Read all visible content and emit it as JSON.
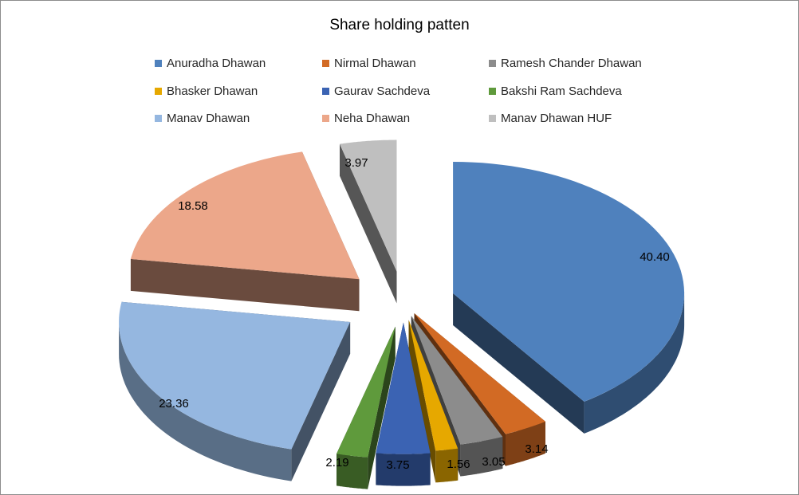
{
  "chart_data": {
    "type": "pie",
    "title": "Share holding patten",
    "legend_position": "top",
    "slices": [
      {
        "name": "Anuradha Dhawan",
        "value": 40.4,
        "label": "40.40",
        "color": "#4f81bd"
      },
      {
        "name": "Nirmal Dhawan",
        "value": 3.14,
        "label": "3.14",
        "color": "#d26a24"
      },
      {
        "name": "Ramesh Chander Dhawan",
        "value": 3.05,
        "label": "3.05",
        "color": "#8c8c8c"
      },
      {
        "name": "Bhasker Dhawan",
        "value": 1.56,
        "label": "1.56",
        "color": "#e6a800"
      },
      {
        "name": "Gaurav Sachdeva",
        "value": 3.75,
        "label": "3.75",
        "color": "#3b63b3"
      },
      {
        "name": "Bakshi Ram Sachdeva",
        "value": 2.19,
        "label": "2.19",
        "color": "#5f9a3c"
      },
      {
        "name": "Manav Dhawan",
        "value": 23.36,
        "label": "23.36",
        "color": "#95b7e0"
      },
      {
        "name": "Neha Dhawan",
        "value": 18.58,
        "label": "18.58",
        "color": "#eca78a"
      },
      {
        "name": "Manav Dhawan HUF",
        "value": 3.97,
        "label": "3.97",
        "color": "#bfbfbf"
      }
    ]
  }
}
